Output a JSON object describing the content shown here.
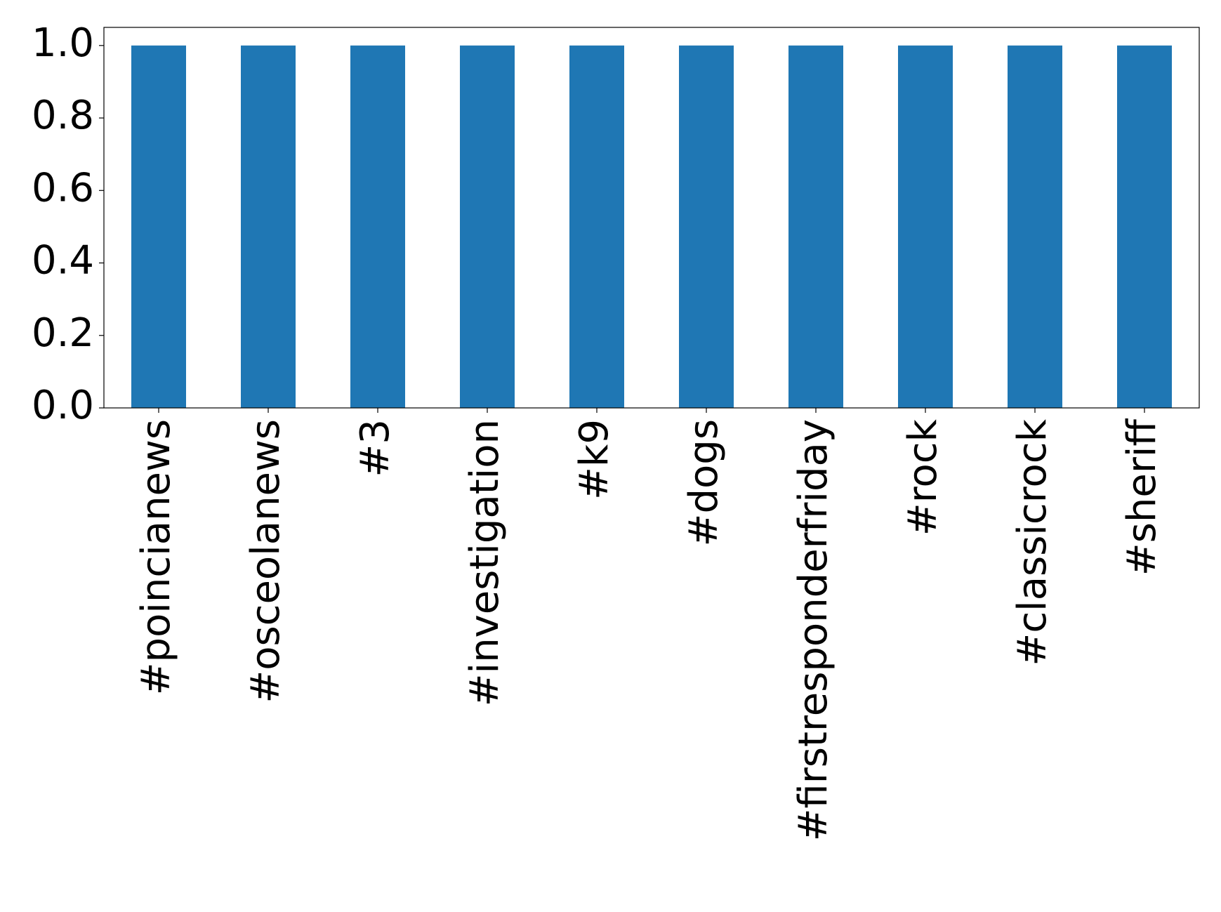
{
  "chart_data": {
    "type": "bar",
    "categories": [
      "#poincianews",
      "#osceolanews",
      "#3",
      "#investigation",
      "#k9",
      "#dogs",
      "#firstresponderfriday",
      "#rock",
      "#classicrock",
      "#sheriff"
    ],
    "values": [
      1,
      1,
      1,
      1,
      1,
      1,
      1,
      1,
      1,
      1
    ],
    "color": "#1f77b4",
    "ylim": [
      0,
      1.05
    ],
    "yticks": [
      {
        "value": 0,
        "label": "0.0"
      },
      0.2,
      0.4,
      0.6,
      0.8,
      {
        "value": 1,
        "label": "1.0"
      }
    ],
    "grid": false
  }
}
